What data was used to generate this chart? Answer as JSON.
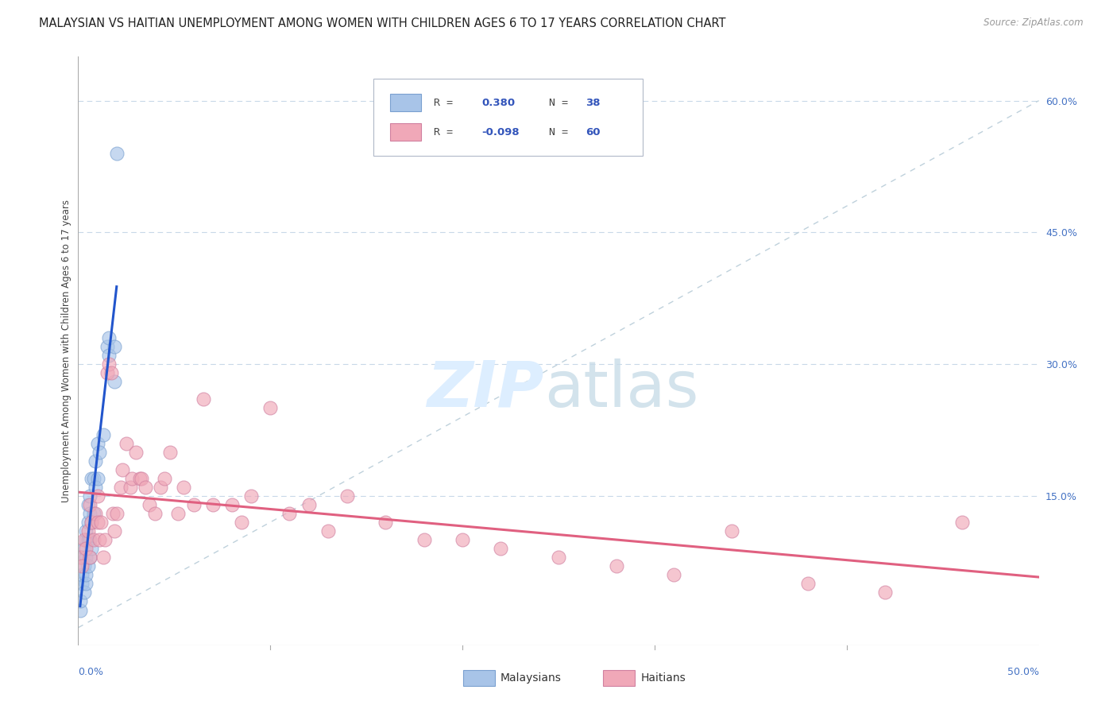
{
  "title": "MALAYSIAN VS HAITIAN UNEMPLOYMENT AMONG WOMEN WITH CHILDREN AGES 6 TO 17 YEARS CORRELATION CHART",
  "source": "Source: ZipAtlas.com",
  "ylabel": "Unemployment Among Women with Children Ages 6 to 17 years",
  "ytick_values": [
    0.15,
    0.3,
    0.45,
    0.6
  ],
  "ytick_labels": [
    "15.0%",
    "30.0%",
    "45.0%",
    "60.0%"
  ],
  "xlim": [
    0.0,
    0.5
  ],
  "ylim": [
    -0.02,
    0.65
  ],
  "legend_R_malaysian": "0.380",
  "legend_N_malaysian": "38",
  "legend_R_haitian": "-0.098",
  "legend_N_haitian": "60",
  "malaysian_color": "#a8c4e8",
  "haitian_color": "#f0a8b8",
  "trendline_malaysian_color": "#2255cc",
  "trendline_haitian_color": "#e06080",
  "diagonal_color": "#b8ccd8",
  "background_color": "#ffffff",
  "grid_color": "#c8d8e8",
  "title_fontsize": 10.5,
  "axis_label_fontsize": 8.5,
  "tick_fontsize": 9,
  "legend_fontsize": 10,
  "source_fontsize": 8.5,
  "malaysian_x": [
    0.001,
    0.001,
    0.002,
    0.002,
    0.002,
    0.003,
    0.003,
    0.003,
    0.004,
    0.004,
    0.004,
    0.004,
    0.004,
    0.005,
    0.005,
    0.005,
    0.005,
    0.006,
    0.006,
    0.006,
    0.006,
    0.007,
    0.007,
    0.007,
    0.008,
    0.008,
    0.009,
    0.009,
    0.01,
    0.01,
    0.011,
    0.013,
    0.015,
    0.016,
    0.016,
    0.019,
    0.019,
    0.02
  ],
  "malaysian_y": [
    0.02,
    0.03,
    0.05,
    0.06,
    0.08,
    0.04,
    0.07,
    0.09,
    0.05,
    0.06,
    0.08,
    0.1,
    0.11,
    0.07,
    0.1,
    0.12,
    0.14,
    0.08,
    0.1,
    0.13,
    0.15,
    0.09,
    0.12,
    0.17,
    0.13,
    0.17,
    0.16,
    0.19,
    0.17,
    0.21,
    0.2,
    0.22,
    0.32,
    0.31,
    0.33,
    0.28,
    0.32,
    0.54
  ],
  "haitian_x": [
    0.001,
    0.002,
    0.003,
    0.004,
    0.005,
    0.006,
    0.006,
    0.007,
    0.008,
    0.009,
    0.01,
    0.01,
    0.011,
    0.012,
    0.013,
    0.014,
    0.015,
    0.016,
    0.017,
    0.018,
    0.019,
    0.02,
    0.022,
    0.023,
    0.025,
    0.027,
    0.028,
    0.03,
    0.032,
    0.033,
    0.035,
    0.037,
    0.04,
    0.043,
    0.045,
    0.048,
    0.052,
    0.055,
    0.06,
    0.065,
    0.07,
    0.08,
    0.085,
    0.09,
    0.1,
    0.11,
    0.12,
    0.13,
    0.14,
    0.16,
    0.18,
    0.2,
    0.22,
    0.25,
    0.28,
    0.31,
    0.34,
    0.38,
    0.42,
    0.46
  ],
  "haitian_y": [
    0.08,
    0.07,
    0.1,
    0.09,
    0.11,
    0.08,
    0.14,
    0.12,
    0.1,
    0.13,
    0.15,
    0.12,
    0.1,
    0.12,
    0.08,
    0.1,
    0.29,
    0.3,
    0.29,
    0.13,
    0.11,
    0.13,
    0.16,
    0.18,
    0.21,
    0.16,
    0.17,
    0.2,
    0.17,
    0.17,
    0.16,
    0.14,
    0.13,
    0.16,
    0.17,
    0.2,
    0.13,
    0.16,
    0.14,
    0.26,
    0.14,
    0.14,
    0.12,
    0.15,
    0.25,
    0.13,
    0.14,
    0.11,
    0.15,
    0.12,
    0.1,
    0.1,
    0.09,
    0.08,
    0.07,
    0.06,
    0.11,
    0.05,
    0.04,
    0.12
  ]
}
